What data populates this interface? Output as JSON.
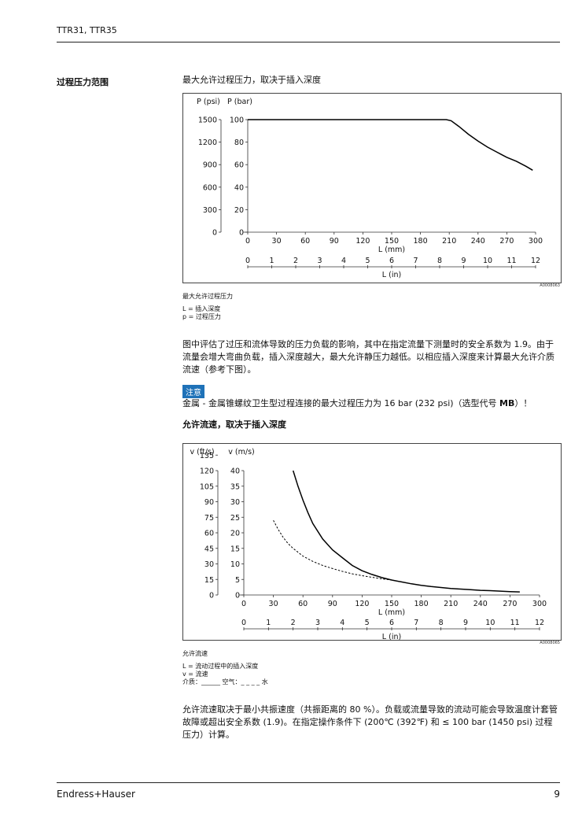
{
  "header": {
    "doc_id": "TTR31, TTR35"
  },
  "section": {
    "title": "过程压力范围"
  },
  "chart1": {
    "heading": "最大允许过程压力，取决于插入深度",
    "caption_title": "最大允许过程压力",
    "legend_l": "L = 插入深度",
    "legend_p": "p = 过程压力",
    "figure_id": "A0008063"
  },
  "para1": "图中评估了过压和流体导致的压力负载的影响，其中在指定流量下测量时的安全系数为 1.9。由于流量会增大弯曲负载，插入深度越大，最大允许静压力越低。以相应插入深度来计算最大允许介质流速（参考下图）。",
  "note": {
    "badge": "注意",
    "text_before": "金属 - 金属锥螺纹卫生型过程连接的最大过程压力为 16 bar (232 psi)（选型代号 ",
    "text_bold": "MB",
    "text_after": "）！"
  },
  "chart2": {
    "heading": "允许流速，取决于插入深度",
    "caption_title": "允许流速",
    "legend_l": "L = 流动过程中的插入深度",
    "legend_v": "v = 流速",
    "legend_medium": "介质：______ 空气：_ _ _ _ 水",
    "figure_id": "A0008065"
  },
  "para2": "允许流速取决于最小共振速度（共振距离的 80 %）。负载或流量导致的流动可能会导致温度计套管故障或超出安全系数 (1.9)。在指定操作条件下 (200℃ (392℉) 和 ≤ 100 bar (1450 psi) 过程压力）计算。",
  "footer": {
    "brand": "Endress+Hauser",
    "page": "9"
  },
  "chart_data": [
    {
      "type": "line",
      "xlabel": "L (mm)",
      "x2label": "L (in)",
      "ylabel": "P (bar)",
      "y2label": "P (psi)",
      "xlim": [
        0,
        300
      ],
      "x_ticks": [
        0,
        30,
        60,
        90,
        120,
        150,
        180,
        210,
        240,
        270,
        300
      ],
      "x2_ticks": [
        0,
        1,
        2,
        3,
        4,
        5,
        6,
        7,
        8,
        9,
        10,
        11,
        12
      ],
      "ylim": [
        0,
        100
      ],
      "y_ticks": [
        0,
        20,
        40,
        60,
        80,
        100
      ],
      "y2_ticks": [
        0,
        300,
        600,
        900,
        1200,
        1500
      ],
      "grid": false,
      "series": [
        {
          "x": [
            0,
            200,
            207,
            212,
            220,
            230,
            240,
            250,
            260,
            270,
            280,
            290,
            297
          ],
          "y": [
            100,
            100,
            100,
            99,
            94,
            87,
            81,
            75.5,
            71,
            66.5,
            63,
            58.5,
            55
          ]
        }
      ]
    },
    {
      "type": "line",
      "xlabel": "L (mm)",
      "x2label": "L (in)",
      "ylabel": "v (m/s)",
      "y2label": "v (ft/s)",
      "xlim": [
        0,
        300
      ],
      "x_ticks": [
        0,
        30,
        60,
        90,
        120,
        150,
        180,
        210,
        240,
        270,
        300
      ],
      "x2_ticks": [
        0,
        1,
        2,
        3,
        4,
        5,
        6,
        7,
        8,
        9,
        10,
        11,
        12
      ],
      "ylim": [
        0,
        40
      ],
      "y_ticks": [
        0,
        5,
        10,
        15,
        20,
        25,
        30,
        35,
        40
      ],
      "y2_ticks": [
        0,
        15,
        30,
        45,
        60,
        75,
        90,
        105,
        120,
        135
      ],
      "grid": false,
      "legend": [
        "介质",
        "空气",
        "水"
      ],
      "series": [
        {
          "name": "空气",
          "style": "solid",
          "x": [
            50,
            55,
            60,
            65,
            70,
            80,
            90,
            100,
            110,
            120,
            130,
            140,
            150,
            160,
            170,
            180,
            190,
            200,
            210,
            220,
            230,
            240,
            250,
            260,
            270,
            280
          ],
          "y": [
            40,
            35,
            30.5,
            26.5,
            23,
            18,
            14.5,
            12,
            9.5,
            7.8,
            6.6,
            5.6,
            4.8,
            4.2,
            3.6,
            3.1,
            2.7,
            2.4,
            2.1,
            1.9,
            1.7,
            1.5,
            1.4,
            1.25,
            1.1,
            1.0
          ]
        },
        {
          "name": "水",
          "style": "dashed",
          "x": [
            30,
            35,
            40,
            45,
            50,
            60,
            70,
            80,
            90,
            100,
            110,
            120,
            130,
            140,
            150
          ],
          "y": [
            24,
            21,
            18.5,
            16.5,
            15,
            12.5,
            10.8,
            9.5,
            8.5,
            7.6,
            6.8,
            6.2,
            5.7,
            5.2,
            4.8
          ]
        }
      ]
    }
  ]
}
